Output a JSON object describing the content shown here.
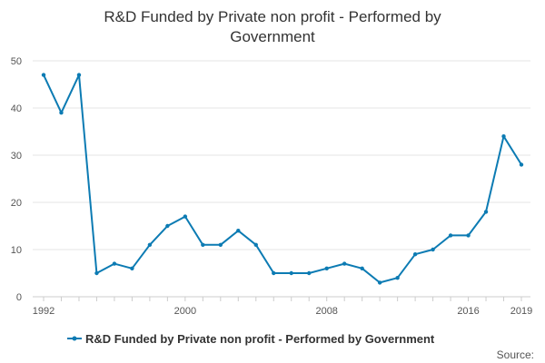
{
  "title_lines": [
    "R&D Funded by Private non profit - Performed by",
    "Government"
  ],
  "source_label": "Source:",
  "colors": {
    "series": "#0c7bb3",
    "grid": "#e6e6e6",
    "axis": "#cccccc",
    "text": "#333333"
  },
  "chart_data": {
    "type": "line",
    "title": "R&D Funded by Private non profit - Performed by Government",
    "x": [
      1992,
      1993,
      1994,
      1995,
      1996,
      1997,
      1998,
      1999,
      2000,
      2001,
      2002,
      2003,
      2004,
      2005,
      2006,
      2007,
      2008,
      2009,
      2010,
      2011,
      2012,
      2013,
      2014,
      2015,
      2016,
      2017,
      2018,
      2019
    ],
    "x_tick_labels": [
      "1992",
      "2000",
      "2008",
      "2016",
      "2019"
    ],
    "xlim": [
      1992,
      2019
    ],
    "ylim": [
      0,
      50
    ],
    "y_ticks": [
      0,
      10,
      20,
      30,
      40,
      50
    ],
    "grid": true,
    "legend_position": "bottom",
    "series": [
      {
        "name": "R&D Funded by Private non profit - Performed by Government",
        "values": [
          47,
          39,
          47,
          5,
          7,
          6,
          11,
          15,
          17,
          11,
          11,
          14,
          11,
          5,
          5,
          5,
          6,
          7,
          6,
          3,
          4,
          9,
          10,
          13,
          13,
          18,
          34,
          28
        ]
      }
    ]
  }
}
